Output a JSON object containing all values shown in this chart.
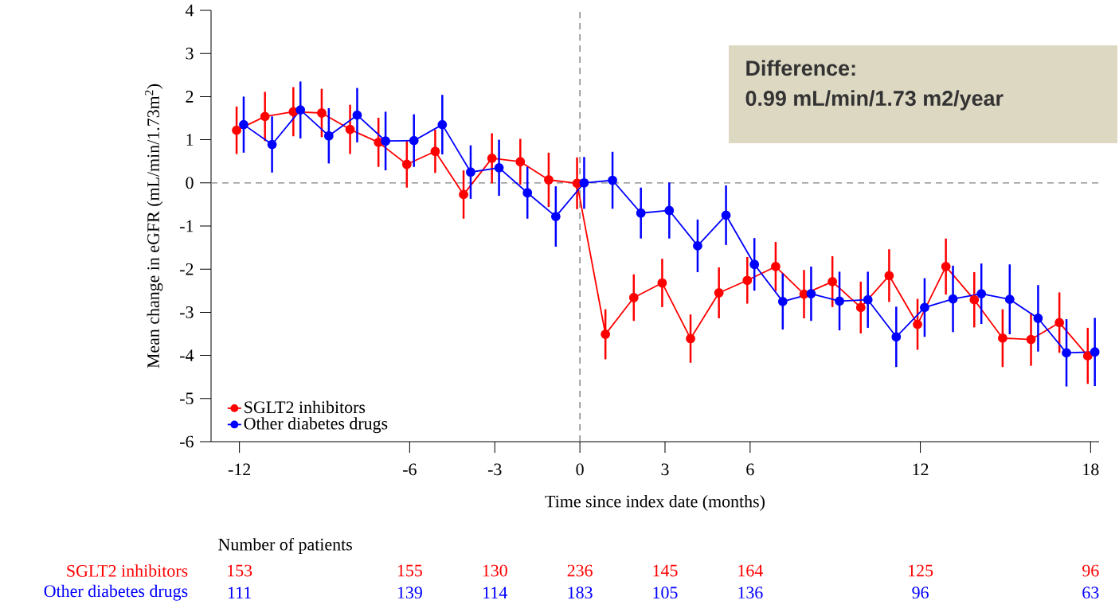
{
  "chart_data": {
    "type": "line",
    "xlabel": "Time since index date (months)",
    "ylabel": "Mean change in eGFR (mL/min/1.73m$^{2}$)",
    "xlim": [
      -13,
      18.3
    ],
    "ylim": [
      -6,
      4
    ],
    "xticks": [
      -12,
      -6,
      -3,
      0,
      3,
      6,
      12,
      18
    ],
    "yticks": [
      -6,
      -5,
      -4,
      -3,
      -2,
      -1,
      0,
      1,
      2,
      3,
      4
    ],
    "legend": "bottom left",
    "marker": "circle",
    "line_style": "solid",
    "ref_lines": [
      {
        "axis": "x",
        "value": 0,
        "color": "#737373",
        "line_style": "dashed"
      },
      {
        "axis": "y",
        "value": 0,
        "color": "#808080",
        "line_style": "dashed"
      }
    ],
    "series": [
      {
        "name": "SGLT2 inhibitors",
        "color": "#ff0000",
        "x": [
          -12.1,
          -11.1,
          -10.1,
          -9.1,
          -8.1,
          -7.1,
          -6.1,
          -5.1,
          -4.1,
          -3.1,
          -2.1,
          -1.1,
          -0.1,
          0.9,
          1.9,
          2.9,
          3.9,
          4.9,
          5.9,
          6.9,
          7.9,
          8.9,
          9.9,
          10.9,
          11.9,
          12.9,
          13.9,
          14.9,
          15.9,
          16.9,
          17.9
        ],
        "values": [
          1.22,
          1.54,
          1.65,
          1.62,
          1.24,
          0.94,
          0.43,
          0.73,
          -0.27,
          0.57,
          0.49,
          0.07,
          -0.01,
          -3.51,
          -2.66,
          -2.32,
          -3.61,
          -2.55,
          -2.26,
          -1.94,
          -2.58,
          -2.29,
          -2.89,
          -2.15,
          -3.28,
          -1.94,
          -2.71,
          -3.6,
          -3.63,
          -3.24,
          -4.01
        ],
        "errors": [
          0.55,
          0.57,
          0.57,
          0.56,
          0.57,
          0.57,
          0.54,
          0.5,
          0.56,
          0.58,
          0.53,
          0.63,
          0.6,
          0.58,
          0.54,
          0.56,
          0.56,
          0.59,
          0.54,
          0.57,
          0.56,
          0.59,
          0.6,
          0.61,
          0.59,
          0.65,
          0.64,
          0.67,
          0.61,
          0.7,
          0.65
        ]
      },
      {
        "name": "Other diabetes drugs",
        "color": "#0000ff",
        "x": [
          -11.85,
          -10.85,
          -9.85,
          -8.85,
          -7.85,
          -6.85,
          -5.85,
          -4.85,
          -3.85,
          -2.85,
          -1.85,
          -0.85,
          0.15,
          1.15,
          2.15,
          3.15,
          4.15,
          5.15,
          6.15,
          7.15,
          8.15,
          9.15,
          10.15,
          11.15,
          12.15,
          13.15,
          14.15,
          15.15,
          16.15,
          17.15,
          18.15
        ],
        "values": [
          1.35,
          0.89,
          1.69,
          1.09,
          1.57,
          0.97,
          0.98,
          1.35,
          0.25,
          0.35,
          -0.23,
          -0.78,
          0.0,
          0.06,
          -0.7,
          -0.64,
          -1.46,
          -0.75,
          -1.89,
          -2.75,
          -2.57,
          -2.74,
          -2.71,
          -3.57,
          -2.89,
          -2.69,
          -2.57,
          -2.7,
          -3.14,
          -3.94,
          -3.92
        ],
        "errors": [
          0.65,
          0.65,
          0.66,
          0.64,
          0.63,
          0.68,
          0.61,
          0.69,
          0.62,
          0.65,
          0.6,
          0.7,
          0.6,
          0.66,
          0.59,
          0.65,
          0.61,
          0.69,
          0.61,
          0.65,
          0.63,
          0.68,
          0.65,
          0.7,
          0.68,
          0.77,
          0.7,
          0.81,
          0.77,
          0.78,
          0.79
        ]
      }
    ],
    "annotations": [
      "Difference:",
      "0.99 mL/min/1.73 m2/year",
      "Number of patients",
      "153",
      "155",
      "130",
      "236",
      "145",
      "164",
      "125",
      "96",
      "111",
      "139",
      "114",
      "183",
      "105",
      "136",
      "96",
      "63"
    ]
  }
}
